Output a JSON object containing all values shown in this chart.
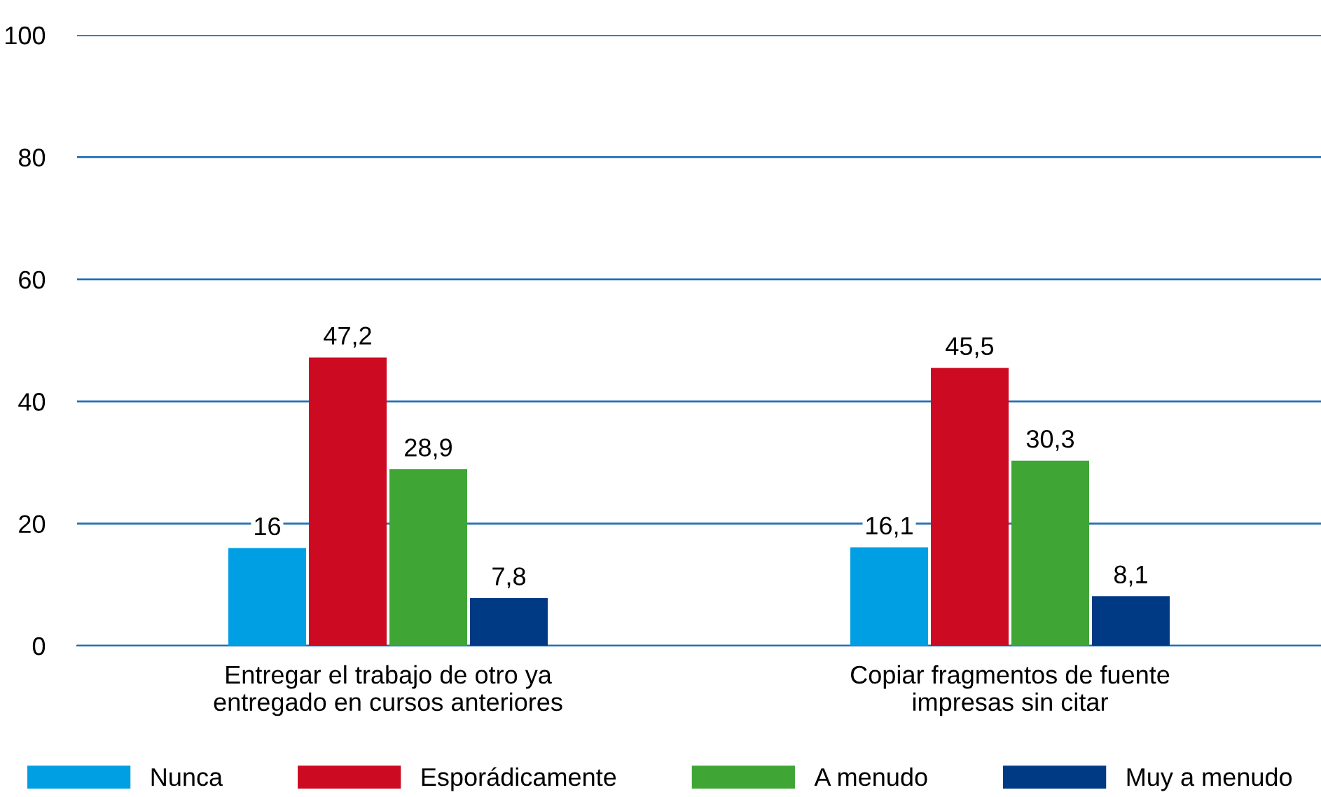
{
  "chart_data": {
    "type": "bar",
    "categories": [
      "Entregar el trabajo de otro ya\nentregado en cursos anteriores",
      "Copiar fragmentos de fuente\nimpresas sin citar"
    ],
    "series": [
      {
        "name": "Nunca",
        "color": "#009fe3",
        "values": [
          16,
          16.1
        ],
        "value_labels": [
          "16",
          "16,1"
        ]
      },
      {
        "name": "Esporádicamente",
        "color": "#cc0a21",
        "values": [
          47.2,
          45.5
        ],
        "value_labels": [
          "47,2",
          "45,5"
        ]
      },
      {
        "name": "A menudo",
        "color": "#3fa535",
        "values": [
          28.9,
          30.3
        ],
        "value_labels": [
          "28,9",
          "30,3"
        ]
      },
      {
        "name": "Muy a menudo",
        "color": "#003a84",
        "values": [
          7.8,
          8.1
        ],
        "value_labels": [
          "7,8",
          "8,1"
        ]
      }
    ],
    "ylim": [
      0,
      100
    ],
    "yticks": [
      0,
      20,
      40,
      60,
      80,
      100
    ],
    "grid": "y",
    "legend": "bottom"
  }
}
